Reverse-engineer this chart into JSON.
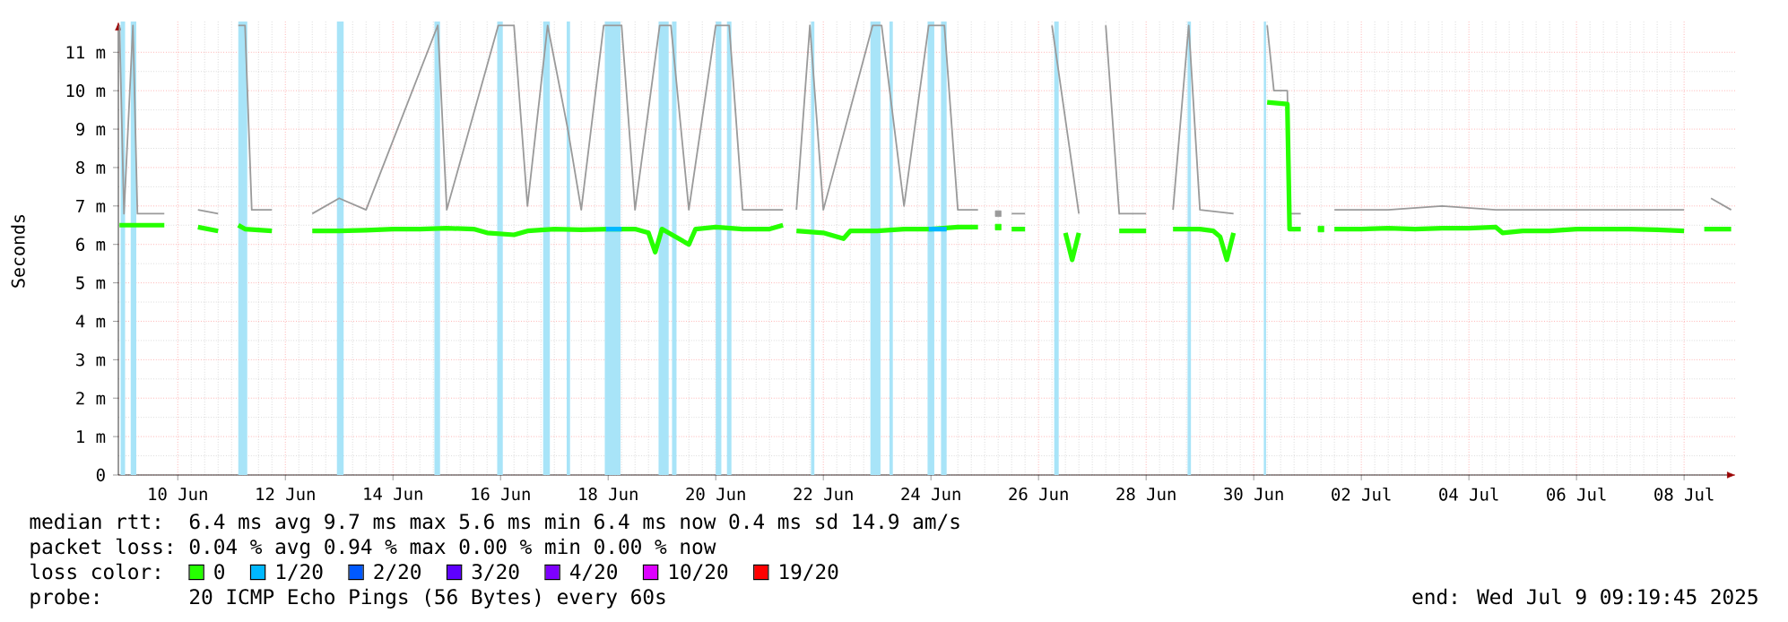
{
  "chart_data": {
    "type": "line",
    "ylabel": "Seconds",
    "legend_title": "loss color:",
    "legend": "bottom",
    "grid": true,
    "xlim": [
      "2025-06-08T21:30",
      "2025-07-08T23:10"
    ],
    "xticks": [
      {
        "value": "2025-06-10",
        "label": "10 Jun"
      },
      {
        "value": "2025-06-12",
        "label": "12 Jun"
      },
      {
        "value": "2025-06-14",
        "label": "14 Jun"
      },
      {
        "value": "2025-06-16",
        "label": "16 Jun"
      },
      {
        "value": "2025-06-18",
        "label": "18 Jun"
      },
      {
        "value": "2025-06-20",
        "label": "20 Jun"
      },
      {
        "value": "2025-06-22",
        "label": "22 Jun"
      },
      {
        "value": "2025-06-24",
        "label": "24 Jun"
      },
      {
        "value": "2025-06-26",
        "label": "26 Jun"
      },
      {
        "value": "2025-06-28",
        "label": "28 Jun"
      },
      {
        "value": "2025-06-30",
        "label": "30 Jun"
      },
      {
        "value": "2025-07-02",
        "label": "02 Jul"
      },
      {
        "value": "2025-07-04",
        "label": "04 Jul"
      },
      {
        "value": "2025-07-06",
        "label": "06 Jul"
      },
      {
        "value": "2025-07-08",
        "label": "08 Jul"
      }
    ],
    "ylim": [
      0,
      11.8
    ],
    "yticks": [
      0,
      {
        "value": 1,
        "label": "1 m"
      },
      {
        "value": 2,
        "label": "2 m"
      },
      {
        "value": 3,
        "label": "3 m"
      },
      {
        "value": 4,
        "label": "4 m"
      },
      {
        "value": 5,
        "label": "5 m"
      },
      {
        "value": 6,
        "label": "6 m"
      },
      {
        "value": 7,
        "label": "7 m"
      },
      {
        "value": 8,
        "label": "8 m"
      },
      {
        "value": 9,
        "label": "9 m"
      },
      {
        "value": 10,
        "label": "10 m"
      },
      {
        "value": 11,
        "label": "11 m"
      }
    ],
    "bands": [
      {
        "axis": "x",
        "from": "2025-06-08T22:30",
        "to": "2025-06-09T00:30",
        "color": "#a8e4f8"
      },
      {
        "axis": "x",
        "from": "2025-06-09T03:00",
        "to": "2025-06-09T05:30",
        "color": "#a8e4f8"
      },
      {
        "axis": "x",
        "from": "2025-06-11T03:00",
        "to": "2025-06-11T07:00",
        "color": "#a8e4f8"
      },
      {
        "axis": "x",
        "from": "2025-06-12T23:00",
        "to": "2025-06-13T02:00",
        "color": "#a8e4f8"
      },
      {
        "axis": "x",
        "from": "2025-06-14T18:30",
        "to": "2025-06-14T21:00",
        "color": "#a8e4f8"
      },
      {
        "axis": "x",
        "from": "2025-06-15T22:30",
        "to": "2025-06-16T01:00",
        "color": "#a8e4f8"
      },
      {
        "axis": "x",
        "from": "2025-06-16T19:00",
        "to": "2025-06-16T22:00",
        "color": "#a8e4f8"
      },
      {
        "axis": "x",
        "from": "2025-06-17T05:30",
        "to": "2025-06-17T07:00",
        "color": "#a8e4f8"
      },
      {
        "axis": "x",
        "from": "2025-06-17T22:30",
        "to": "2025-06-18T05:30",
        "color": "#a8e4f8"
      },
      {
        "axis": "x",
        "from": "2025-06-18T22:30",
        "to": "2025-06-19T03:00",
        "color": "#a8e4f8"
      },
      {
        "axis": "x",
        "from": "2025-06-19T04:30",
        "to": "2025-06-19T06:30",
        "color": "#a8e4f8"
      },
      {
        "axis": "x",
        "from": "2025-06-20T00:00",
        "to": "2025-06-20T02:30",
        "color": "#a8e4f8"
      },
      {
        "axis": "x",
        "from": "2025-06-20T05:00",
        "to": "2025-06-20T07:00",
        "color": "#a8e4f8"
      },
      {
        "axis": "x",
        "from": "2025-06-21T18:30",
        "to": "2025-06-21T20:00",
        "color": "#a8e4f8"
      },
      {
        "axis": "x",
        "from": "2025-06-22T21:00",
        "to": "2025-06-23T01:30",
        "color": "#a8e4f8"
      },
      {
        "axis": "x",
        "from": "2025-06-23T05:30",
        "to": "2025-06-23T07:00",
        "color": "#a8e4f8"
      },
      {
        "axis": "x",
        "from": "2025-06-23T22:30",
        "to": "2025-06-24T01:30",
        "color": "#a8e4f8"
      },
      {
        "axis": "x",
        "from": "2025-06-24T04:30",
        "to": "2025-06-24T07:00",
        "color": "#a8e4f8"
      },
      {
        "axis": "x",
        "from": "2025-06-26T07:00",
        "to": "2025-06-26T09:00",
        "color": "#a8e4f8"
      },
      {
        "axis": "x",
        "from": "2025-06-28T18:30",
        "to": "2025-06-28T20:00",
        "color": "#a8e4f8"
      },
      {
        "axis": "x",
        "from": "2025-06-30T04:30",
        "to": "2025-06-30T05:30",
        "color": "#a8e4f8"
      }
    ],
    "series": [
      {
        "color": "#9a9a9a",
        "x": [
          "2025-06-08T22:00",
          "2025-06-09T00:00",
          "2025-06-09T04:00",
          "2025-06-09T06:00",
          "2025-06-09T18:00",
          "2025-06-09T21:00",
          "2025-06-10T09:00",
          "2025-06-10T18:00",
          "2025-06-10T21:00",
          "2025-06-11T03:00",
          "2025-06-11T06:00",
          "2025-06-11T09:00",
          "2025-06-11T18:00",
          "2025-06-11T21:00",
          "2025-06-12T12:00",
          "2025-06-13T00:00",
          "2025-06-13T12:00",
          "2025-06-14T20:00",
          "2025-06-15T00:00",
          "2025-06-15T23:00",
          "2025-06-16T06:00",
          "2025-06-16T12:00",
          "2025-06-16T21:00",
          "2025-06-17T06:00",
          "2025-06-17T12:00",
          "2025-06-17T22:00",
          "2025-06-18T06:00",
          "2025-06-18T12:00",
          "2025-06-18T23:00",
          "2025-06-19T04:00",
          "2025-06-19T12:00",
          "2025-06-20T00:00",
          "2025-06-20T06:00",
          "2025-06-20T12:00",
          "2025-06-21T06:00",
          "2025-06-21T09:00",
          "2025-06-21T12:00",
          "2025-06-21T18:00",
          "2025-06-22T00:00",
          "2025-06-22T22:00",
          "2025-06-23T02:00",
          "2025-06-23T12:00",
          "2025-06-23T23:00",
          "2025-06-24T06:00",
          "2025-06-24T12:00",
          "2025-06-24T21:00",
          "2025-06-25T00:00",
          "2025-06-25T06:00",
          "2025-06-25T09:00",
          "2025-06-25T12:00",
          "2025-06-25T18:00",
          "2025-06-25T21:00",
          "2025-06-26T06:00",
          "2025-06-26T18:00",
          "2025-06-26T21:00",
          "2025-06-27T06:00",
          "2025-06-27T12:00",
          "2025-06-28T00:00",
          "2025-06-28T03:00",
          "2025-06-28T12:00",
          "2025-06-28T19:00",
          "2025-06-29T00:00",
          "2025-06-29T15:00",
          "2025-06-29T18:00",
          "2025-06-30T06:00",
          "2025-06-30T09:00",
          "2025-06-30T15:00",
          "2025-06-30T16:00",
          "2025-06-30T21:00",
          "2025-07-01T00:00",
          "2025-07-01T12:00",
          "2025-07-02T12:00",
          "2025-07-03T12:00",
          "2025-07-04T12:00",
          "2025-07-05T12:00",
          "2025-07-06T12:00",
          "2025-07-07T12:00",
          "2025-07-08T00:00",
          "2025-07-08T06:00",
          "2025-07-08T12:00",
          "2025-07-08T21:00"
        ],
        "values": [
          11.7,
          6.8,
          11.7,
          6.8,
          6.8,
          null,
          6.9,
          6.8,
          null,
          11.7,
          11.7,
          6.9,
          6.9,
          null,
          6.8,
          7.2,
          6.9,
          11.7,
          6.9,
          11.7,
          11.7,
          7.0,
          11.7,
          9.0,
          6.9,
          11.7,
          11.7,
          6.9,
          11.7,
          11.7,
          6.9,
          11.7,
          11.7,
          6.9,
          6.9,
          null,
          6.9,
          11.7,
          6.9,
          11.7,
          11.7,
          7.0,
          11.7,
          11.7,
          6.9,
          6.9,
          null,
          6.8,
          null,
          6.8,
          6.8,
          null,
          11.7,
          6.8,
          null,
          11.7,
          6.8,
          6.8,
          null,
          6.9,
          11.7,
          6.9,
          6.8,
          null,
          11.7,
          10.0,
          10.0,
          6.8,
          6.8,
          null,
          6.9,
          6.9,
          7.0,
          6.9,
          6.9,
          6.9,
          6.9,
          6.9,
          null,
          7.2,
          6.9
        ]
      },
      {
        "name": "0",
        "color": "#26ff00",
        "x": [
          "2025-06-08T22:00",
          "2025-06-09T12:00",
          "2025-06-09T18:00",
          "2025-06-09T21:00",
          "2025-06-10T09:00",
          "2025-06-10T18:00",
          "2025-06-10T21:00",
          "2025-06-11T03:00",
          "2025-06-11T06:00",
          "2025-06-11T18:00",
          "2025-06-11T21:00",
          "2025-06-12T12:00",
          "2025-06-13T00:00",
          "2025-06-13T12:00",
          "2025-06-14T00:00",
          "2025-06-14T12:00",
          "2025-06-15T00:00",
          "2025-06-15T12:00",
          "2025-06-15T18:00",
          "2025-06-16T06:00",
          "2025-06-16T12:00",
          "2025-06-17T00:00",
          "2025-06-17T12:00",
          "2025-06-18T00:00",
          "2025-06-18T12:00",
          "2025-06-18T18:00",
          "2025-06-18T21:00",
          "2025-06-19T00:00",
          "2025-06-19T12:00",
          "2025-06-19T15:00",
          "2025-06-20T00:00",
          "2025-06-20T12:00",
          "2025-06-21T00:00",
          "2025-06-21T06:00",
          "2025-06-21T09:00",
          "2025-06-21T12:00",
          "2025-06-22T00:00",
          "2025-06-22T09:00",
          "2025-06-22T12:00",
          "2025-06-23T00:00",
          "2025-06-23T12:00",
          "2025-06-24T00:00",
          "2025-06-24T12:00",
          "2025-06-24T21:00",
          "2025-06-25T00:00",
          "2025-06-25T06:00",
          "2025-06-25T09:00",
          "2025-06-25T12:00",
          "2025-06-25T18:00",
          "2025-06-25T21:00",
          "2025-06-26T12:00",
          "2025-06-26T15:00",
          "2025-06-26T18:00",
          "2025-06-26T21:00",
          "2025-06-27T12:00",
          "2025-06-28T00:00",
          "2025-06-28T03:00",
          "2025-06-28T12:00",
          "2025-06-29T00:00",
          "2025-06-29T06:00",
          "2025-06-29T09:00",
          "2025-06-29T12:00",
          "2025-06-29T15:00",
          "2025-06-29T18:00",
          "2025-06-30T06:00",
          "2025-06-30T15:00",
          "2025-06-30T16:00",
          "2025-06-30T21:00",
          "2025-07-01T00:00",
          "2025-07-01T06:00",
          "2025-07-01T09:00",
          "2025-07-01T12:00",
          "2025-07-02T00:00",
          "2025-07-02T12:00",
          "2025-07-03T00:00",
          "2025-07-03T12:00",
          "2025-07-04T00:00",
          "2025-07-04T12:00",
          "2025-07-04T15:00",
          "2025-07-05T00:00",
          "2025-07-05T12:00",
          "2025-07-06T00:00",
          "2025-07-06T12:00",
          "2025-07-07T00:00",
          "2025-07-07T12:00",
          "2025-07-08T00:00",
          "2025-07-08T06:00",
          "2025-07-08T09:00",
          "2025-07-08T21:00"
        ],
        "values": [
          6.5,
          6.5,
          6.5,
          null,
          6.45,
          6.35,
          null,
          6.5,
          6.4,
          6.35,
          null,
          6.35,
          6.35,
          6.37,
          6.4,
          6.4,
          6.42,
          6.4,
          6.3,
          6.25,
          6.35,
          6.4,
          6.38,
          6.4,
          6.4,
          6.3,
          5.8,
          6.4,
          6.0,
          6.4,
          6.45,
          6.4,
          6.4,
          6.5,
          null,
          6.35,
          6.3,
          6.15,
          6.35,
          6.35,
          6.4,
          6.4,
          6.45,
          6.45,
          null,
          6.45,
          null,
          6.4,
          6.4,
          null,
          6.3,
          5.6,
          6.3,
          null,
          6.35,
          6.35,
          null,
          6.4,
          6.4,
          6.35,
          6.2,
          5.6,
          6.3,
          null,
          9.7,
          9.65,
          6.4,
          6.4,
          null,
          6.4,
          null,
          6.4,
          6.4,
          6.42,
          6.4,
          6.42,
          6.42,
          6.45,
          6.3,
          6.35,
          6.35,
          6.4,
          6.4,
          6.4,
          6.38,
          6.35,
          null,
          6.4,
          6.4
        ]
      },
      {
        "name": "1/20",
        "color": "#00b8ff",
        "x": [
          "2025-06-17T23:00",
          "2025-06-18T06:00",
          "2025-06-18T07:00",
          "2025-06-23T23:00",
          "2025-06-24T07:00"
        ],
        "values": [
          6.4,
          6.4,
          null,
          6.4,
          6.4
        ]
      },
      {
        "name": "2/20",
        "color": "#0059ff"
      },
      {
        "name": "3/20",
        "color": "#5e00ff"
      },
      {
        "name": "4/20",
        "color": "#7e00ff"
      },
      {
        "name": "10/20",
        "color": "#dd00ff"
      },
      {
        "name": "19/20",
        "color": "#ff0000"
      }
    ],
    "annotations": [
      "median rtt:",
      "6.4 ms avg  9.7 ms max  5.6 ms min  6.4 ms now  0.4 ms sd  14.9   am/s",
      "packet loss:",
      "0.04 % avg  0.94 % max  0.00 % min  0.00 % now",
      "probe:",
      "20 ICMP Echo Pings (56 Bytes) every 60s",
      "end: Wed Jul  9 09:19:45 2025"
    ]
  }
}
